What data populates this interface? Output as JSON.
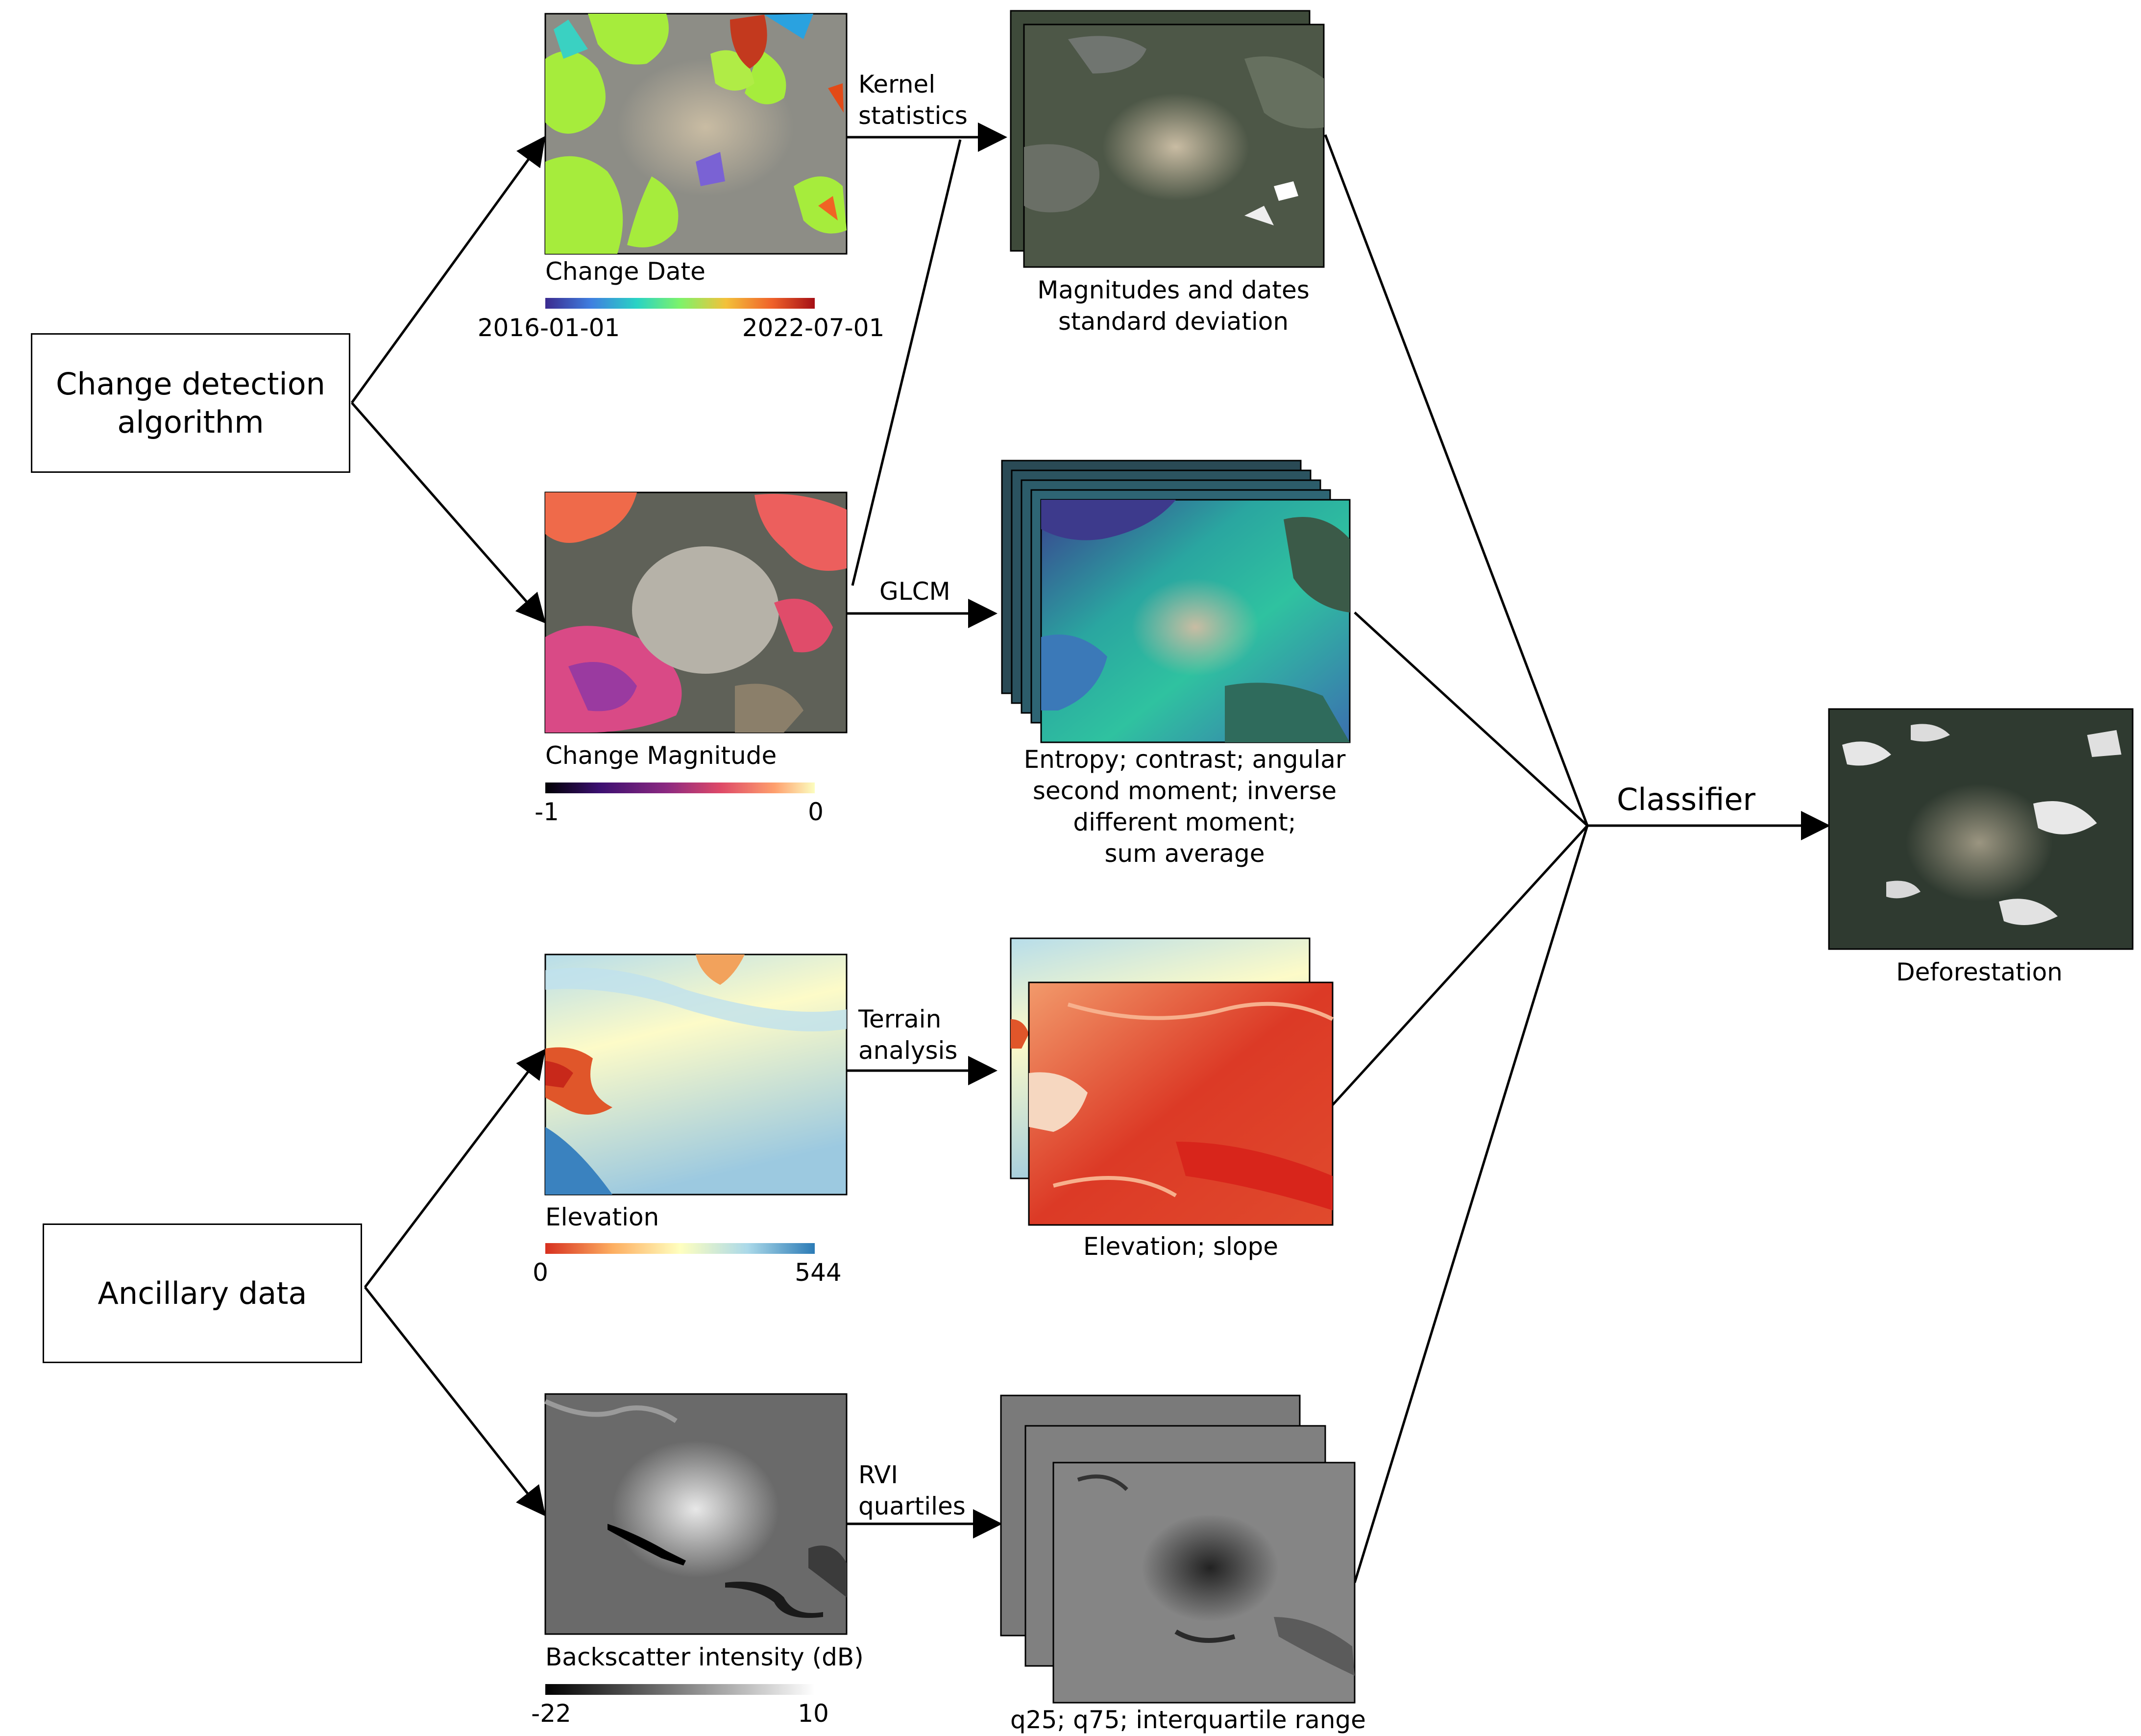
{
  "boxes": {
    "change_detection": "Change detection\nalgorithm",
    "ancillary": "Ancillary data"
  },
  "panels": {
    "change_date": {
      "caption": "Change Date",
      "min": "2016-01-01",
      "max": "2022-07-01"
    },
    "change_magnitude": {
      "caption": "Change Magnitude",
      "min": "-1",
      "max": "0"
    },
    "elevation": {
      "caption": "Elevation",
      "min": "0",
      "max": "544"
    },
    "backscatter": {
      "caption": "Backscatter intensity (dB)",
      "min": "-22",
      "max": "10"
    }
  },
  "operations": {
    "kernel": "Kernel\nstatistics",
    "glcm": "GLCM",
    "terrain": "Terrain\nanalysis",
    "rvi": "RVI\nquartiles",
    "classifier": "Classifier"
  },
  "outputs": {
    "kernel_stack": "Magnitudes and dates\nstandard deviation",
    "glcm_stack": "Entropy; contrast; angular\nsecond moment; inverse\ndifferent moment;\nsum average",
    "terrain_stack": "Elevation; slope",
    "rvi_stack": "q25; q75; interquartile range",
    "final": "Deforestation"
  },
  "colors": {
    "date_ramp": [
      "#3b2a8f",
      "#3f7fe0",
      "#29d3c4",
      "#7df36a",
      "#f3c13a",
      "#f0622a",
      "#a50f15"
    ],
    "magnitude_ramp": [
      "#000004",
      "#3b0f70",
      "#8c2981",
      "#de4968",
      "#fe9f6d",
      "#fcfdbf"
    ],
    "elevation_ramp": [
      "#d7301f",
      "#fdae61",
      "#ffffbf",
      "#abd9e9",
      "#2c7bb6"
    ],
    "backscatter_ramp": [
      "#000000",
      "#ffffff"
    ]
  }
}
